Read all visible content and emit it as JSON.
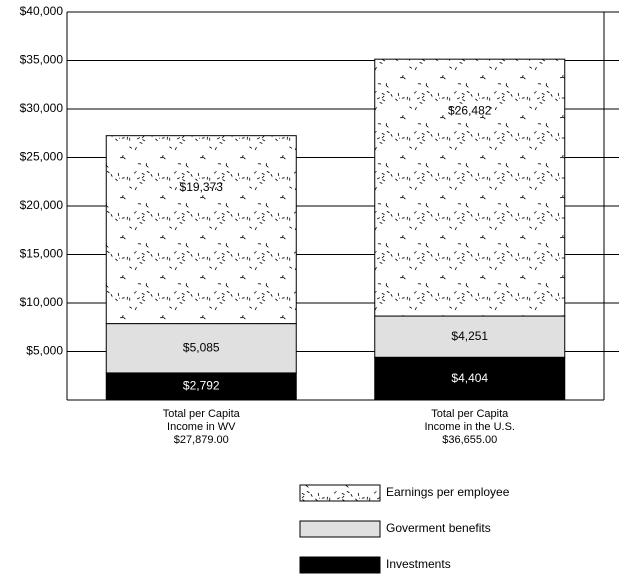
{
  "chart_data": {
    "type": "stacked_bar",
    "categories": [
      "Total per Capita\nIncome in WV\n$27,879.00",
      "Total per Capita\nIncome in the U.S.\n$36,655.00"
    ],
    "series": [
      {
        "name": "Investments",
        "color": "#000000",
        "values": [
          2792,
          4404
        ],
        "value_labels": [
          "$2,792",
          "$4,404"
        ]
      },
      {
        "name": "Goverment benefits",
        "color": "#e0e0e0",
        "values": [
          5085,
          4251
        ],
        "value_labels": [
          "$5,085",
          "$4,251"
        ]
      },
      {
        "name": "Earnings per  employee",
        "color": "#ffffff",
        "pattern": "dashes",
        "values": [
          19373,
          26482
        ],
        "value_labels": [
          "$19,373",
          "$26,482"
        ]
      }
    ],
    "ylim": [
      0,
      40000
    ],
    "yticks": [
      {
        "value": 5000,
        "label": "$5,000"
      },
      {
        "value": 10000,
        "label": "$10,000"
      },
      {
        "value": 15000,
        "label": "$15,000"
      },
      {
        "value": 20000,
        "label": "$20,000"
      },
      {
        "value": 25000,
        "label": "$25,000"
      },
      {
        "value": 30000,
        "label": "$30,000"
      },
      {
        "value": 35000,
        "label": "$35,000"
      },
      {
        "value": 40000,
        "label": "$40,000"
      }
    ],
    "grid": true,
    "legend": "bottom"
  }
}
